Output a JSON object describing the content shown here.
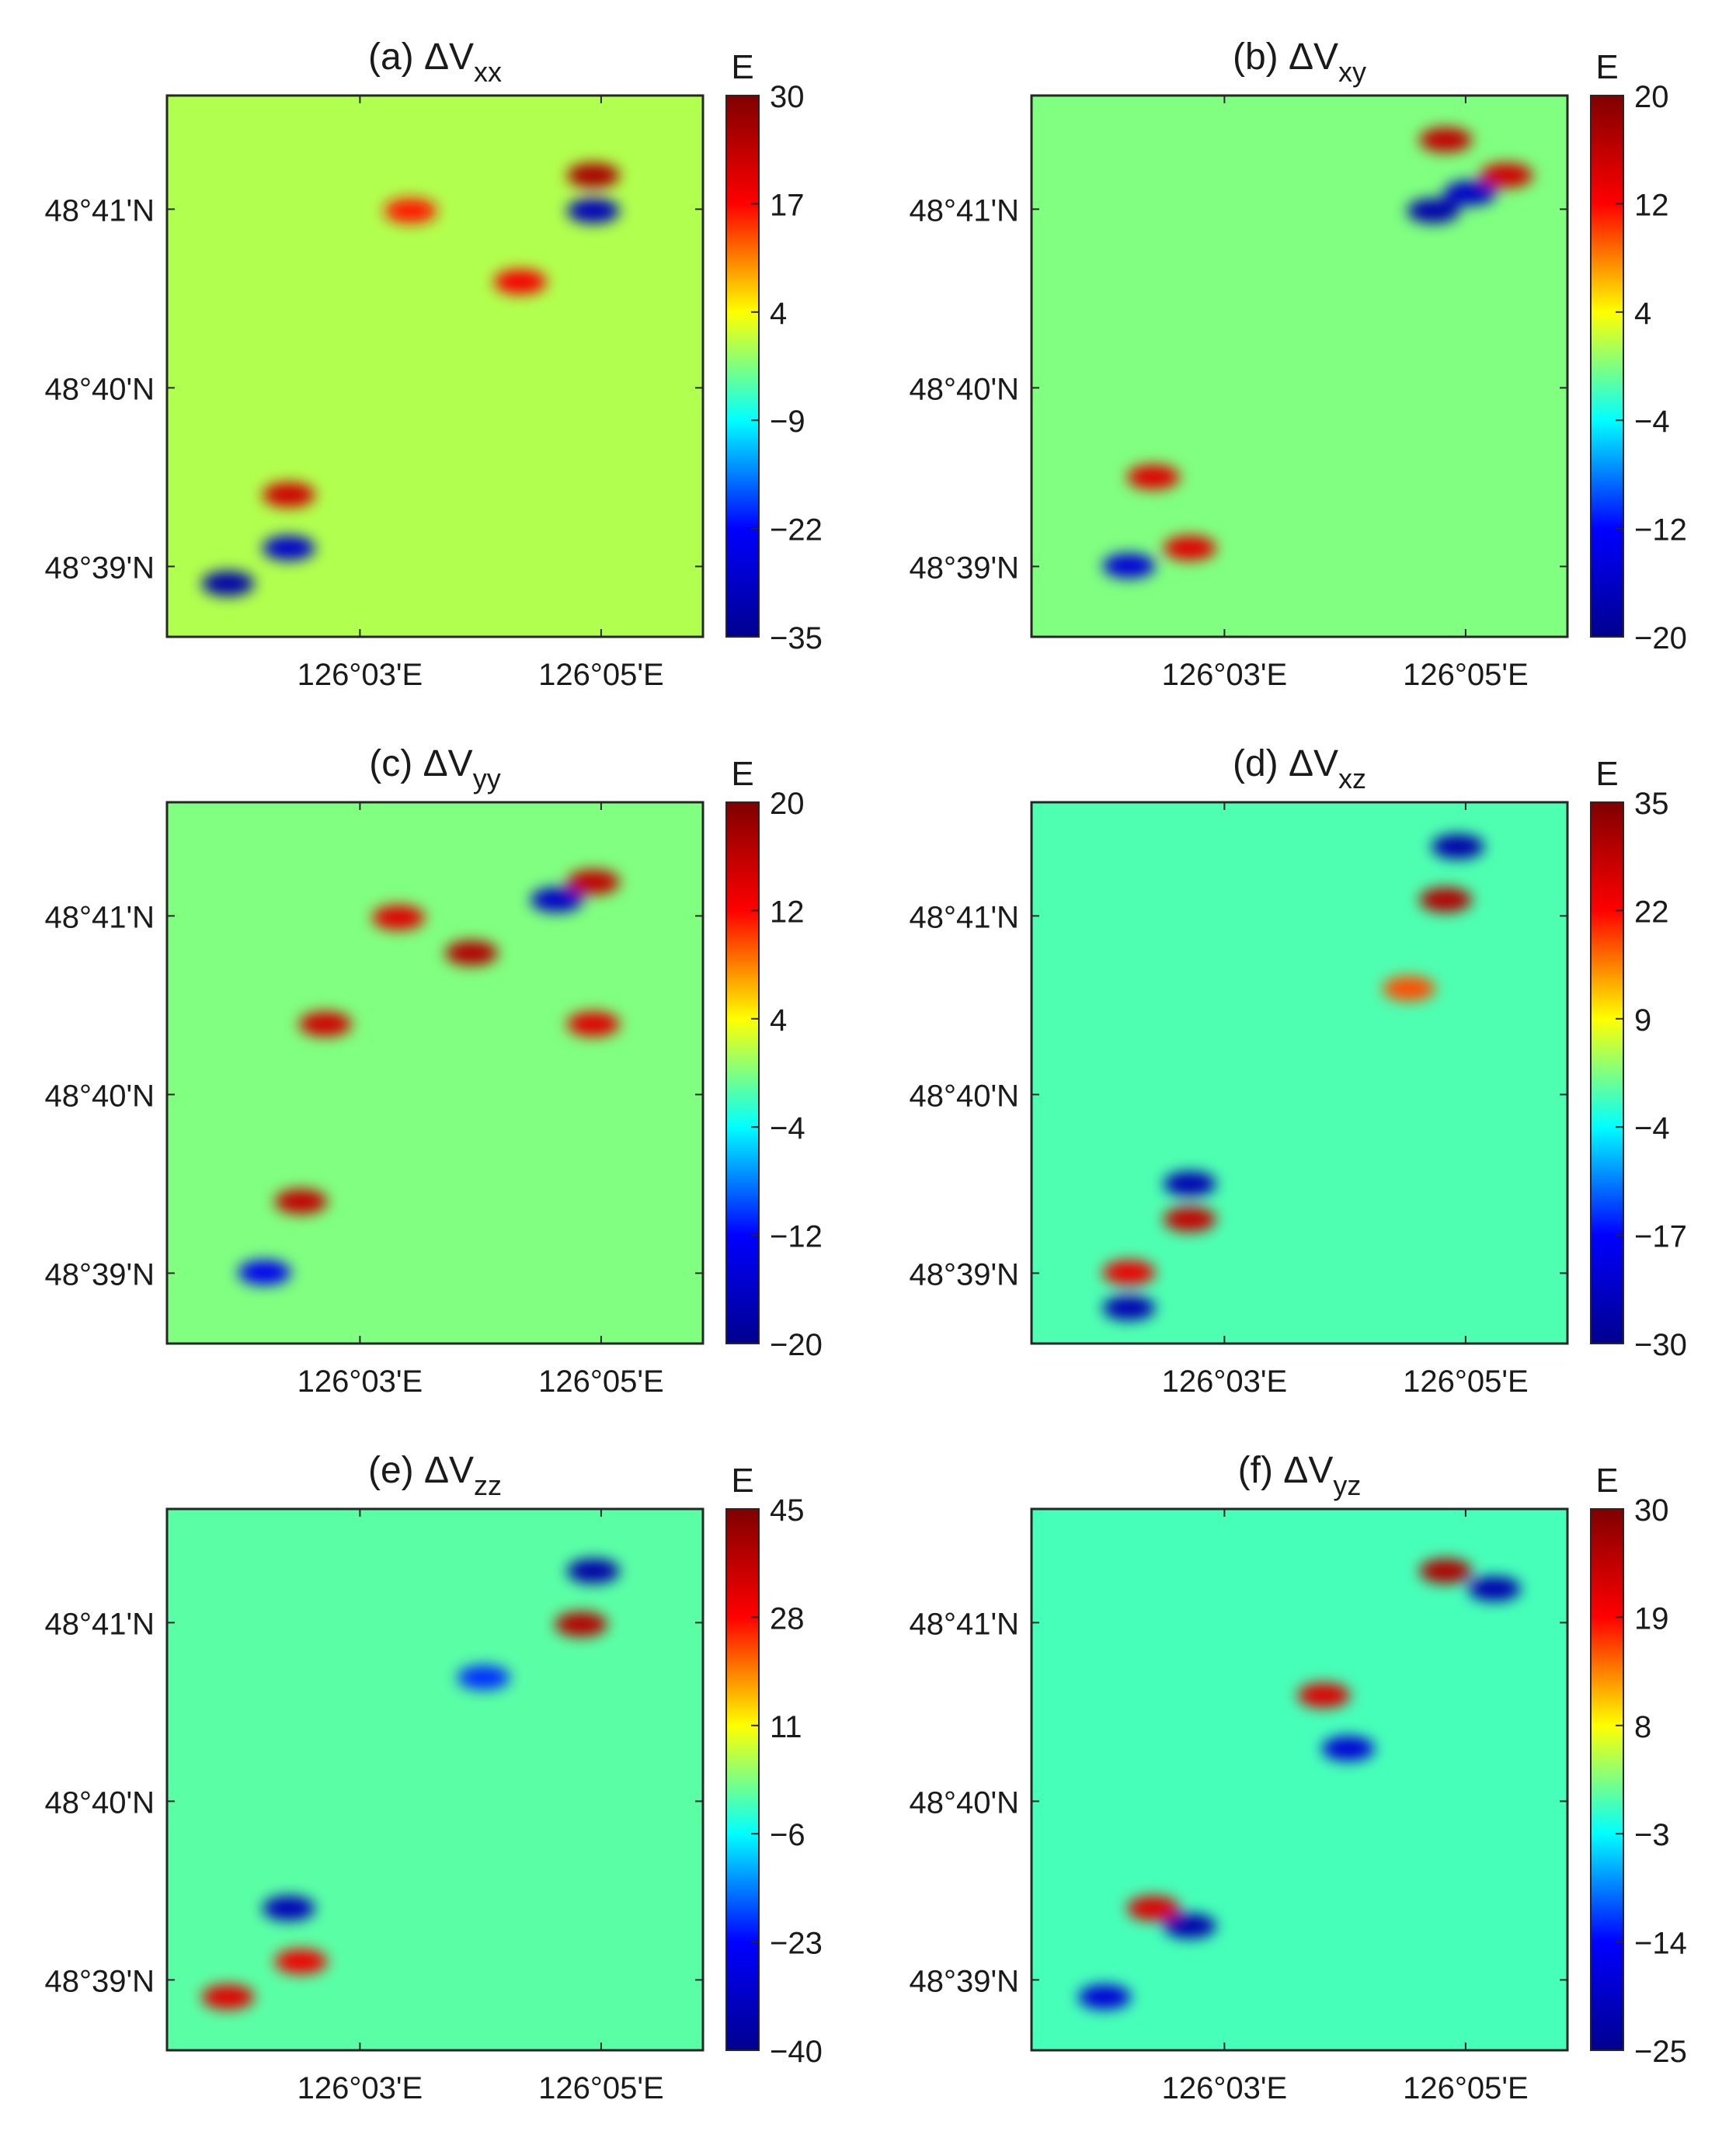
{
  "figure": {
    "panels": [
      {
        "id": "a",
        "title_prefix": "(a) ΔV",
        "title_sub": "xx",
        "colorbar_unit": "E",
        "colorbar_ticks": [
          "30",
          "17",
          "4",
          "−9",
          "−22",
          "−35"
        ]
      },
      {
        "id": "b",
        "title_prefix": "(b) ΔV",
        "title_sub": "xy",
        "colorbar_unit": "E",
        "colorbar_ticks": [
          "20",
          "12",
          "4",
          "−4",
          "−12",
          "−20"
        ]
      },
      {
        "id": "c",
        "title_prefix": "(c) ΔV",
        "title_sub": "yy",
        "colorbar_unit": "E",
        "colorbar_ticks": [
          "20",
          "12",
          "4",
          "−4",
          "−12",
          "−20"
        ]
      },
      {
        "id": "d",
        "title_prefix": "(d) ΔV",
        "title_sub": "xz",
        "colorbar_unit": "E",
        "colorbar_ticks": [
          "35",
          "22",
          "9",
          "−4",
          "−17",
          "−30"
        ]
      },
      {
        "id": "e",
        "title_prefix": "(e) ΔV",
        "title_sub": "zz",
        "colorbar_unit": "E",
        "colorbar_ticks": [
          "45",
          "28",
          "11",
          "−6",
          "−23",
          "−40"
        ]
      },
      {
        "id": "f",
        "title_prefix": "(f) ΔV",
        "title_sub": "yz",
        "colorbar_unit": "E",
        "colorbar_ticks": [
          "30",
          "19",
          "8",
          "−3",
          "−14",
          "−25"
        ]
      }
    ],
    "x_ticks": [
      "126°03'E",
      "126°05'E"
    ],
    "y_ticks": [
      "48°41'N",
      "48°40'N",
      "48°39'N"
    ],
    "colormap": [
      "#00008f",
      "#0000ff",
      "#00ffff",
      "#ffff00",
      "#ff0000",
      "#800000"
    ]
  },
  "chart_data": [
    {
      "type": "heatmap",
      "title": "(a) ΔVxx",
      "colorbar_label": "E",
      "clim": [
        -35,
        30
      ],
      "colorbar_ticks": [
        30,
        17,
        4,
        -9,
        -22,
        -35
      ],
      "xticks": [
        "126°03'E",
        "126°05'E"
      ],
      "yticks": [
        "48°41'N",
        "48°40'N",
        "48°39'N"
      ],
      "grid": false,
      "anomalies": [
        {
          "lon": "126°04.9'E",
          "lat": "48°41.2'N",
          "value": 26
        },
        {
          "lon": "126°04.9'E",
          "lat": "48°41.0'N",
          "value": -30
        },
        {
          "lon": "126°04.3'E",
          "lat": "48°40.6'N",
          "value": 18
        },
        {
          "lon": "126°03.4'E",
          "lat": "48°41.0'N",
          "value": 16
        },
        {
          "lon": "126°02.4'E",
          "lat": "48°39.4'N",
          "value": 22
        },
        {
          "lon": "126°02.4'E",
          "lat": "48°39.1'N",
          "value": -28
        },
        {
          "lon": "126°01.9'E",
          "lat": "48°38.9'N",
          "value": -32
        }
      ]
    },
    {
      "type": "heatmap",
      "title": "(b) ΔVxy",
      "colorbar_label": "E",
      "clim": [
        -20,
        20
      ],
      "colorbar_ticks": [
        20,
        12,
        4,
        -4,
        -12,
        -20
      ],
      "xticks": [
        "126°03'E",
        "126°05'E"
      ],
      "yticks": [
        "48°41'N",
        "48°40'N",
        "48°39'N"
      ],
      "grid": false,
      "anomalies": [
        {
          "lon": "126°04.8'E",
          "lat": "48°41.4'N",
          "value": 16
        },
        {
          "lon": "126°04.7'E",
          "lat": "48°41.0'N",
          "value": -18
        },
        {
          "lon": "126°05.0'E",
          "lat": "48°41.1'N",
          "value": -16
        },
        {
          "lon": "126°05.3'E",
          "lat": "48°41.2'N",
          "value": 15
        },
        {
          "lon": "126°02.4'E",
          "lat": "48°39.5'N",
          "value": 14
        },
        {
          "lon": "126°02.7'E",
          "lat": "48°39.1'N",
          "value": 14
        },
        {
          "lon": "126°02.2'E",
          "lat": "48°39.0'N",
          "value": -15
        }
      ]
    },
    {
      "type": "heatmap",
      "title": "(c) ΔVyy",
      "colorbar_label": "E",
      "clim": [
        -20,
        20
      ],
      "colorbar_ticks": [
        20,
        12,
        4,
        -4,
        -12,
        -20
      ],
      "xticks": [
        "126°03'E",
        "126°05'E"
      ],
      "yticks": [
        "48°41'N",
        "48°40'N",
        "48°39'N"
      ],
      "grid": false,
      "anomalies": [
        {
          "lon": "126°04.9'E",
          "lat": "48°41.2'N",
          "value": 16
        },
        {
          "lon": "126°04.6'E",
          "lat": "48°41.1'N",
          "value": -16
        },
        {
          "lon": "126°03.9'E",
          "lat": "48°40.8'N",
          "value": 17
        },
        {
          "lon": "126°03.3'E",
          "lat": "48°41.0'N",
          "value": 14
        },
        {
          "lon": "126°02.7'E",
          "lat": "48°40.4'N",
          "value": 15
        },
        {
          "lon": "126°04.9'E",
          "lat": "48°40.4'N",
          "value": 14
        },
        {
          "lon": "126°02.5'E",
          "lat": "48°39.4'N",
          "value": 16
        },
        {
          "lon": "126°02.2'E",
          "lat": "48°39.0'N",
          "value": -13
        }
      ]
    },
    {
      "type": "heatmap",
      "title": "(d) ΔVxz",
      "colorbar_label": "E",
      "clim": [
        -30,
        35
      ],
      "colorbar_ticks": [
        35,
        22,
        9,
        -4,
        -17,
        -30
      ],
      "xticks": [
        "126°03'E",
        "126°05'E"
      ],
      "yticks": [
        "48°41'N",
        "48°40'N",
        "48°39'N"
      ],
      "grid": false,
      "anomalies": [
        {
          "lon": "126°04.9'E",
          "lat": "48°41.4'N",
          "value": -27
        },
        {
          "lon": "126°04.8'E",
          "lat": "48°41.1'N",
          "value": 30
        },
        {
          "lon": "126°04.5'E",
          "lat": "48°40.6'N",
          "value": 18
        },
        {
          "lon": "126°02.7'E",
          "lat": "48°39.5'N",
          "value": -26
        },
        {
          "lon": "126°02.7'E",
          "lat": "48°39.3'N",
          "value": 28
        },
        {
          "lon": "126°02.2'E",
          "lat": "48°39.0'N",
          "value": 24
        },
        {
          "lon": "126°02.2'E",
          "lat": "48°38.8'N",
          "value": -26
        }
      ]
    },
    {
      "type": "heatmap",
      "title": "(e) ΔVzz",
      "colorbar_label": "E",
      "clim": [
        -40,
        45
      ],
      "colorbar_ticks": [
        45,
        28,
        11,
        -6,
        -23,
        -40
      ],
      "xticks": [
        "126°03'E",
        "126°05'E"
      ],
      "yticks": [
        "48°41'N",
        "48°40'N",
        "48°39'N"
      ],
      "grid": false,
      "anomalies": [
        {
          "lon": "126°04.9'E",
          "lat": "48°41.3'N",
          "value": -36
        },
        {
          "lon": "126°04.8'E",
          "lat": "48°41.0'N",
          "value": 38
        },
        {
          "lon": "126°04.0'E",
          "lat": "48°40.7'N",
          "value": -20
        },
        {
          "lon": "126°02.4'E",
          "lat": "48°39.4'N",
          "value": -34
        },
        {
          "lon": "126°02.5'E",
          "lat": "48°39.1'N",
          "value": 30
        },
        {
          "lon": "126°01.9'E",
          "lat": "48°38.9'N",
          "value": 32
        }
      ]
    },
    {
      "type": "heatmap",
      "title": "(f) ΔVyz",
      "colorbar_label": "E",
      "clim": [
        -25,
        30
      ],
      "colorbar_ticks": [
        30,
        19,
        8,
        -3,
        -14,
        -25
      ],
      "xticks": [
        "126°03'E",
        "126°05'E"
      ],
      "yticks": [
        "48°41'N",
        "48°40'N",
        "48°39'N"
      ],
      "grid": false,
      "anomalies": [
        {
          "lon": "126°04.8'E",
          "lat": "48°41.3'N",
          "value": 26
        },
        {
          "lon": "126°05.2'E",
          "lat": "48°41.2'N",
          "value": -22
        },
        {
          "lon": "126°03.8'E",
          "lat": "48°40.6'N",
          "value": 22
        },
        {
          "lon": "126°04.0'E",
          "lat": "48°40.3'N",
          "value": -18
        },
        {
          "lon": "126°02.4'E",
          "lat": "48°39.4'N",
          "value": 22
        },
        {
          "lon": "126°02.7'E",
          "lat": "48°39.3'N",
          "value": -22
        },
        {
          "lon": "126°02.0'E",
          "lat": "48°38.9'N",
          "value": -18
        }
      ]
    }
  ]
}
